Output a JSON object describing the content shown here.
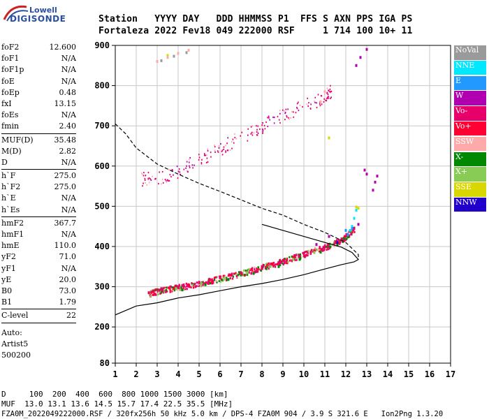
{
  "logo": {
    "line1": "Lowell",
    "line2": "DIGISONDE"
  },
  "header": {
    "labels": "Station   YYYY DAY   DDD HHMMSS P1  FFS S AXN PPS IGA PS",
    "values": "Fortaleza 2022 Fev18 049 222000 RSF     1 714 100 10+ 11"
  },
  "params": [
    {
      "k": "foF2",
      "v": "12.600"
    },
    {
      "k": "foF1",
      "v": "N/A"
    },
    {
      "k": "foF1p",
      "v": "N/A"
    },
    {
      "k": "foE",
      "v": "N/A"
    },
    {
      "k": "foEp",
      "v": "0.48"
    },
    {
      "k": "fxI",
      "v": "13.15"
    },
    {
      "k": "foEs",
      "v": "N/A"
    },
    {
      "k": "fmin",
      "v": "2.40"
    },
    {
      "sep": true
    },
    {
      "k": "MUF(D)",
      "v": "35.48"
    },
    {
      "k": "M(D)",
      "v": "2.82"
    },
    {
      "k": "D",
      "v": "N/A"
    },
    {
      "sep": true
    },
    {
      "k": "h`F",
      "v": "275.0"
    },
    {
      "k": "h`F2",
      "v": "275.0"
    },
    {
      "k": "h`E",
      "v": "N/A"
    },
    {
      "k": "h`Es",
      "v": "N/A"
    },
    {
      "sep": true
    },
    {
      "k": "hmF2",
      "v": "367.7"
    },
    {
      "k": "hmF1",
      "v": "N/A"
    },
    {
      "k": "hmE",
      "v": "110.0"
    },
    {
      "k": "yF2",
      "v": "71.0"
    },
    {
      "k": "yF1",
      "v": "N/A"
    },
    {
      "k": "yE",
      "v": "20.0"
    },
    {
      "k": "B0",
      "v": "73.0"
    },
    {
      "k": "B1",
      "v": "1.79"
    },
    {
      "sep": true
    },
    {
      "k": "C-level",
      "v": "22"
    },
    {
      "sep": true
    }
  ],
  "auto": [
    "Auto:",
    "Artist5",
    "500200"
  ],
  "legend": [
    {
      "label": "NoVal",
      "color": "#9a9a9a"
    },
    {
      "label": "NNE",
      "color": "#00e8ff"
    },
    {
      "label": "E",
      "color": "#2299ff"
    },
    {
      "label": "W",
      "color": "#b000b0"
    },
    {
      "label": "Vo-",
      "color": "#e8006a"
    },
    {
      "label": "Vo+",
      "color": "#ff0033"
    },
    {
      "label": "SSW",
      "color": "#ffaaaa"
    },
    {
      "label": "X-",
      "color": "#008800"
    },
    {
      "label": "X+",
      "color": "#88cc55"
    },
    {
      "label": "SSE",
      "color": "#d8d800"
    },
    {
      "label": "NNW",
      "color": "#2200cc"
    }
  ],
  "footer": {
    "d_line": "D     100  200  400  600  800 1000 1500 3000 [km]",
    "muf_line": "MUF  13.0 13.1 13.6 14.5 15.7 17.4 22.5 35.5 [MHz]",
    "file_line": "FZA0M_2022049222000.RSF / 320fx256h 50 kHz 5.0 km / DPS-4 FZA0M 904 / 3.9 S 321.6 E   Ion2Png 1.3.20"
  },
  "chart_data": {
    "type": "scatter",
    "x_ticks": [
      1,
      2,
      3,
      4,
      5,
      6,
      7,
      8,
      9,
      10,
      11,
      12,
      13,
      14,
      15,
      16,
      17
    ],
    "y_ticks": [
      80,
      200,
      300,
      400,
      500,
      600,
      700,
      800,
      900
    ],
    "xlim": [
      1,
      17
    ],
    "ylim": [
      80,
      900
    ],
    "grid": true,
    "legend_position": "right",
    "series": [
      {
        "name": "Vo-",
        "color": "#e8006a",
        "points": [
          [
            2.6,
            285
          ],
          [
            3.2,
            293
          ],
          [
            4,
            300
          ],
          [
            5,
            310
          ],
          [
            6,
            322
          ],
          [
            7,
            335
          ],
          [
            8,
            350
          ],
          [
            9,
            365
          ],
          [
            10,
            382
          ],
          [
            11,
            400
          ],
          [
            11.8,
            418
          ],
          [
            12.4,
            445
          ]
        ]
      },
      {
        "name": "Vo+",
        "color": "#ff0033",
        "points": [
          [
            2.8,
            288
          ],
          [
            3.6,
            296
          ],
          [
            4.5,
            305
          ],
          [
            5.5,
            316
          ],
          [
            6.5,
            329
          ],
          [
            7.5,
            343
          ],
          [
            8.5,
            357
          ],
          [
            9.5,
            373
          ],
          [
            10.5,
            390
          ],
          [
            11.5,
            410
          ]
        ]
      },
      {
        "name": "X-",
        "color": "#008800",
        "points": [
          [
            4.2,
            292
          ],
          [
            5.3,
            305
          ],
          [
            6.4,
            318
          ],
          [
            7.6,
            333
          ],
          [
            8.8,
            350
          ],
          [
            9.8,
            368
          ],
          [
            10.8,
            386
          ],
          [
            11.6,
            405
          ]
        ]
      },
      {
        "name": "X+",
        "color": "#88cc55",
        "points": [
          [
            3.9,
            295
          ],
          [
            5.1,
            308
          ],
          [
            6.2,
            321
          ],
          [
            7.3,
            335
          ],
          [
            8.4,
            350
          ],
          [
            9.5,
            368
          ],
          [
            10.5,
            385
          ]
        ]
      },
      {
        "name": "W",
        "color": "#b000b0",
        "points": [
          [
            10.6,
            405
          ],
          [
            11.2,
            425
          ],
          [
            12.0,
            440
          ],
          [
            12.6,
            455
          ],
          [
            12.9,
            590
          ],
          [
            13.0,
            580
          ],
          [
            13.3,
            540
          ],
          [
            13.4,
            560
          ],
          [
            13.5,
            575
          ],
          [
            12.5,
            850
          ],
          [
            12.7,
            870
          ],
          [
            13.0,
            890
          ]
        ]
      },
      {
        "name": "NNE",
        "color": "#00e8ff",
        "points": [
          [
            12.2,
            440
          ],
          [
            12.3,
            450
          ],
          [
            12.4,
            470
          ],
          [
            12.5,
            490
          ]
        ]
      },
      {
        "name": "E",
        "color": "#2299ff",
        "points": [
          [
            12.1,
            430
          ],
          [
            12.3,
            445
          ],
          [
            12.0,
            440
          ]
        ]
      },
      {
        "name": "SSE",
        "color": "#d8d800",
        "points": [
          [
            12.5,
            498
          ],
          [
            12.6,
            495
          ],
          [
            11.2,
            670
          ],
          [
            3.5,
            875
          ]
        ]
      },
      {
        "name": "SSW",
        "color": "#ffaaaa",
        "points": [
          [
            3.0,
            860
          ],
          [
            3.5,
            870
          ],
          [
            4.0,
            880
          ],
          [
            4.5,
            888
          ],
          [
            10.8,
            760
          ],
          [
            11.0,
            785
          ]
        ]
      },
      {
        "name": "NNW",
        "color": "#2200cc",
        "points": [
          [
            11.6,
            410
          ]
        ]
      },
      {
        "name": "NoVal",
        "color": "#9a9a9a",
        "points": [
          [
            3.2,
            862
          ],
          [
            3.8,
            873
          ],
          [
            4.4,
            882
          ]
        ]
      }
    ],
    "second_hop": [
      [
        2.2,
        568
      ],
      [
        3,
        572
      ],
      [
        4,
        590
      ],
      [
        5,
        618
      ],
      [
        6,
        645
      ],
      [
        7,
        675
      ],
      [
        8,
        700
      ],
      [
        9,
        728
      ],
      [
        10,
        750
      ],
      [
        11,
        775
      ],
      [
        11.3,
        790
      ]
    ],
    "profile_solid": [
      [
        1,
        230
      ],
      [
        2,
        252
      ],
      [
        3,
        260
      ],
      [
        4,
        272
      ],
      [
        5,
        280
      ],
      [
        6,
        290
      ],
      [
        7,
        300
      ],
      [
        8,
        308
      ],
      [
        9,
        318
      ],
      [
        10,
        330
      ],
      [
        11,
        344
      ],
      [
        11.8,
        355
      ],
      [
        12.4,
        362
      ],
      [
        12.6,
        367.7
      ],
      [
        12.3,
        385
      ],
      [
        11.8,
        398
      ],
      [
        11,
        410
      ],
      [
        10,
        425
      ],
      [
        9,
        440
      ],
      [
        8,
        455
      ]
    ],
    "profile_dashed": [
      [
        1,
        705
      ],
      [
        1.5,
        680
      ],
      [
        2,
        645
      ],
      [
        3,
        605
      ],
      [
        4,
        580
      ],
      [
        5,
        557
      ],
      [
        6,
        537
      ],
      [
        7,
        516
      ],
      [
        8,
        495
      ],
      [
        9,
        478
      ],
      [
        10,
        455
      ],
      [
        11,
        435
      ],
      [
        12,
        410
      ],
      [
        12.6,
        380
      ],
      [
        12.6,
        367.7
      ]
    ]
  }
}
